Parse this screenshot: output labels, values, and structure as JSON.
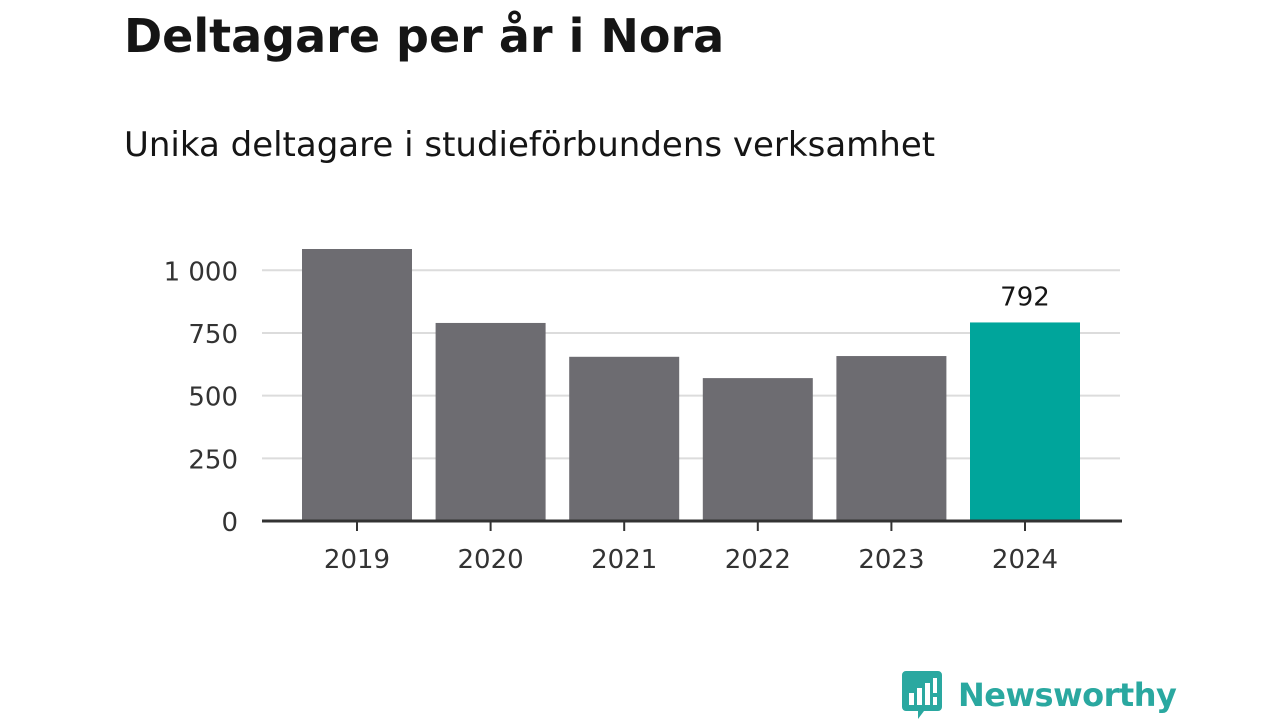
{
  "title": "Deltagare per år i Nora",
  "subtitle": "Unika deltagare i studieförbundens verksamhet",
  "brand": {
    "name": "Newsworthy",
    "color": "#2aa8a0",
    "icon": "newsworthy-bar-chart-icon"
  },
  "colors": {
    "bar_default": "#6d6c71",
    "bar_highlight": "#00a59b",
    "gridline": "#dcdcdc",
    "axis": "#333333",
    "tick_text": "#333333",
    "label_text": "#151515"
  },
  "chart_data": {
    "type": "bar",
    "categories": [
      "2019",
      "2020",
      "2021",
      "2022",
      "2023",
      "2024"
    ],
    "values": [
      1085,
      790,
      655,
      570,
      658,
      792
    ],
    "highlight_index": 5,
    "data_labels": [
      {
        "index": 5,
        "text": "792"
      }
    ],
    "ylim": [
      0,
      1085
    ],
    "yticks": [
      0,
      250,
      500,
      750,
      1000
    ],
    "ytick_labels": [
      "0",
      "250",
      "500",
      "750",
      "1 000"
    ],
    "xlabel": "",
    "ylabel": "",
    "grid": true
  }
}
